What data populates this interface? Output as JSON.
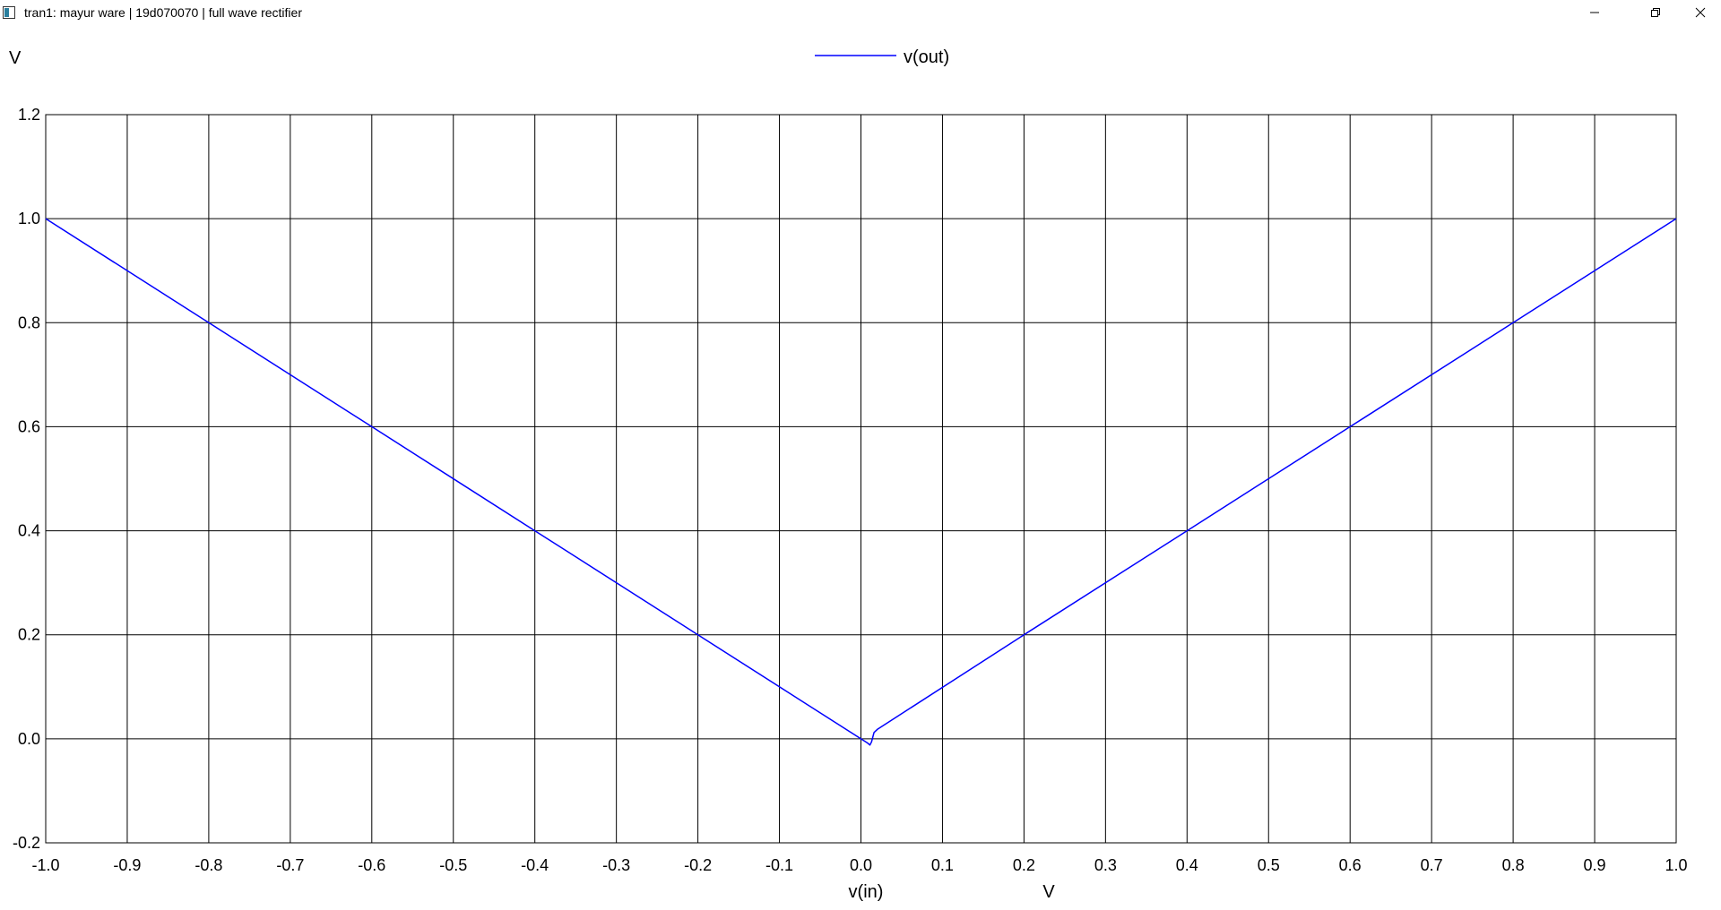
{
  "window": {
    "title": "tran1: mayur ware | 19d070070 | full wave rectifier",
    "icons": [
      "app-icon",
      "minimize-icon",
      "restore-icon",
      "close-icon"
    ]
  },
  "chart_data": {
    "type": "line",
    "title": "",
    "xlabel": "v(in)",
    "xunit": "V",
    "ylabel": "",
    "yunit": "V",
    "xlim": [
      -1.0,
      1.0
    ],
    "ylim": [
      -0.2,
      1.2
    ],
    "x_ticks": [
      "-1.0",
      "-0.9",
      "-0.8",
      "-0.7",
      "-0.6",
      "-0.5",
      "-0.4",
      "-0.3",
      "-0.2",
      "-0.1",
      "0.0",
      "0.1",
      "0.2",
      "0.3",
      "0.4",
      "0.5",
      "0.6",
      "0.7",
      "0.8",
      "0.9",
      "1.0"
    ],
    "y_ticks": [
      "-0.2",
      "0.0",
      "0.2",
      "0.4",
      "0.6",
      "0.8",
      "1.0",
      "1.2"
    ],
    "grid": true,
    "legend_position": "top-center",
    "series": [
      {
        "name": "v(out)",
        "color": "#0000ff",
        "x": [
          -1.0,
          -0.8,
          -0.6,
          -0.4,
          -0.2,
          0.0,
          0.008,
          0.011,
          0.013,
          0.016,
          0.02,
          0.2,
          0.4,
          0.6,
          0.8,
          1.0
        ],
        "y": [
          1.0,
          0.8,
          0.6,
          0.4,
          0.2,
          0.0,
          -0.008,
          -0.012,
          -0.006,
          0.012,
          0.018,
          0.2,
          0.4,
          0.6,
          0.8,
          1.0
        ]
      }
    ]
  }
}
